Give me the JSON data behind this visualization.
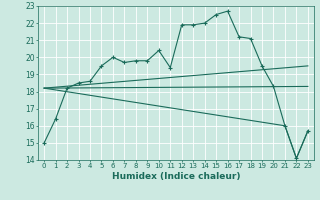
{
  "xlabel": "Humidex (Indice chaleur)",
  "xlim": [
    -0.5,
    23.5
  ],
  "ylim": [
    14,
    23
  ],
  "yticks": [
    14,
    15,
    16,
    17,
    18,
    19,
    20,
    21,
    22,
    23
  ],
  "xticks": [
    0,
    1,
    2,
    3,
    4,
    5,
    6,
    7,
    8,
    9,
    10,
    11,
    12,
    13,
    14,
    15,
    16,
    17,
    18,
    19,
    20,
    21,
    22,
    23
  ],
  "background_color": "#cce9e1",
  "grid_color": "#b0d4cc",
  "line_color": "#1a6b5a",
  "lines": [
    {
      "x": [
        0,
        1,
        2,
        3,
        4,
        5,
        6,
        7,
        8,
        9,
        10,
        11,
        12,
        13,
        14,
        15,
        16,
        17,
        18,
        19,
        20,
        21,
        22,
        23
      ],
      "y": [
        15.0,
        16.4,
        18.2,
        18.5,
        18.6,
        19.5,
        20.0,
        19.7,
        19.8,
        19.8,
        20.4,
        19.4,
        21.9,
        21.9,
        22.0,
        22.5,
        22.7,
        21.2,
        21.1,
        19.5,
        18.3,
        16.0,
        14.1,
        15.7
      ],
      "marker": "+"
    },
    {
      "x": [
        0,
        23
      ],
      "y": [
        18.2,
        19.5
      ],
      "marker": null
    },
    {
      "x": [
        0,
        23
      ],
      "y": [
        18.2,
        18.3
      ],
      "marker": null
    },
    {
      "x": [
        0,
        21,
        22,
        23
      ],
      "y": [
        18.2,
        16.0,
        14.1,
        15.7
      ],
      "marker": null
    }
  ]
}
